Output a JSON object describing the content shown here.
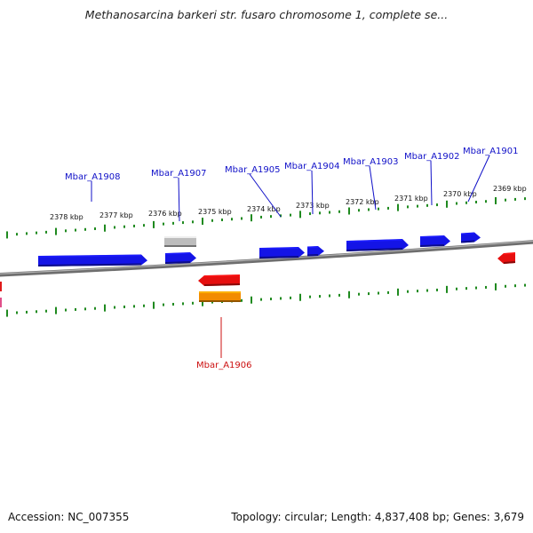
{
  "title": "Methanosarcina barkeri str. fusaro chromosome 1, complete se...",
  "footer": {
    "accession": "Accession: NC_007355",
    "summary": "Topology: circular; Length: 4,837,408 bp; Genes: 3,679"
  },
  "colors": {
    "forward_gene": "#1414e6",
    "reverse_gene": "#e60f0f",
    "other_feature": "#bdbdbd",
    "reverse_rna": "#f28c00",
    "ruler_ticks": "#1f8a1f",
    "backbone": "#7a7a7a",
    "forward_label": "#1010c8",
    "reverse_label": "#cc1010"
  },
  "ruler_labels": [
    "2378 kbp",
    "2377 kbp",
    "2376 kbp",
    "2375 kbp",
    "2374 kbp",
    "2373 kbp",
    "2372 kbp",
    "2371 kbp",
    "2370 kbp",
    "2369 kbp"
  ],
  "gene_labels": [
    {
      "text": "Mbar_A1908",
      "strand": "forward"
    },
    {
      "text": "Mbar_A1907",
      "strand": "forward"
    },
    {
      "text": "Mbar_A1905",
      "strand": "forward"
    },
    {
      "text": "Mbar_A1904",
      "strand": "forward"
    },
    {
      "text": "Mbar_A1903",
      "strand": "forward"
    },
    {
      "text": "Mbar_A1902",
      "strand": "forward"
    },
    {
      "text": "Mbar_A1901",
      "strand": "forward"
    },
    {
      "text": "Mbar_A1906",
      "strand": "reverse"
    }
  ]
}
